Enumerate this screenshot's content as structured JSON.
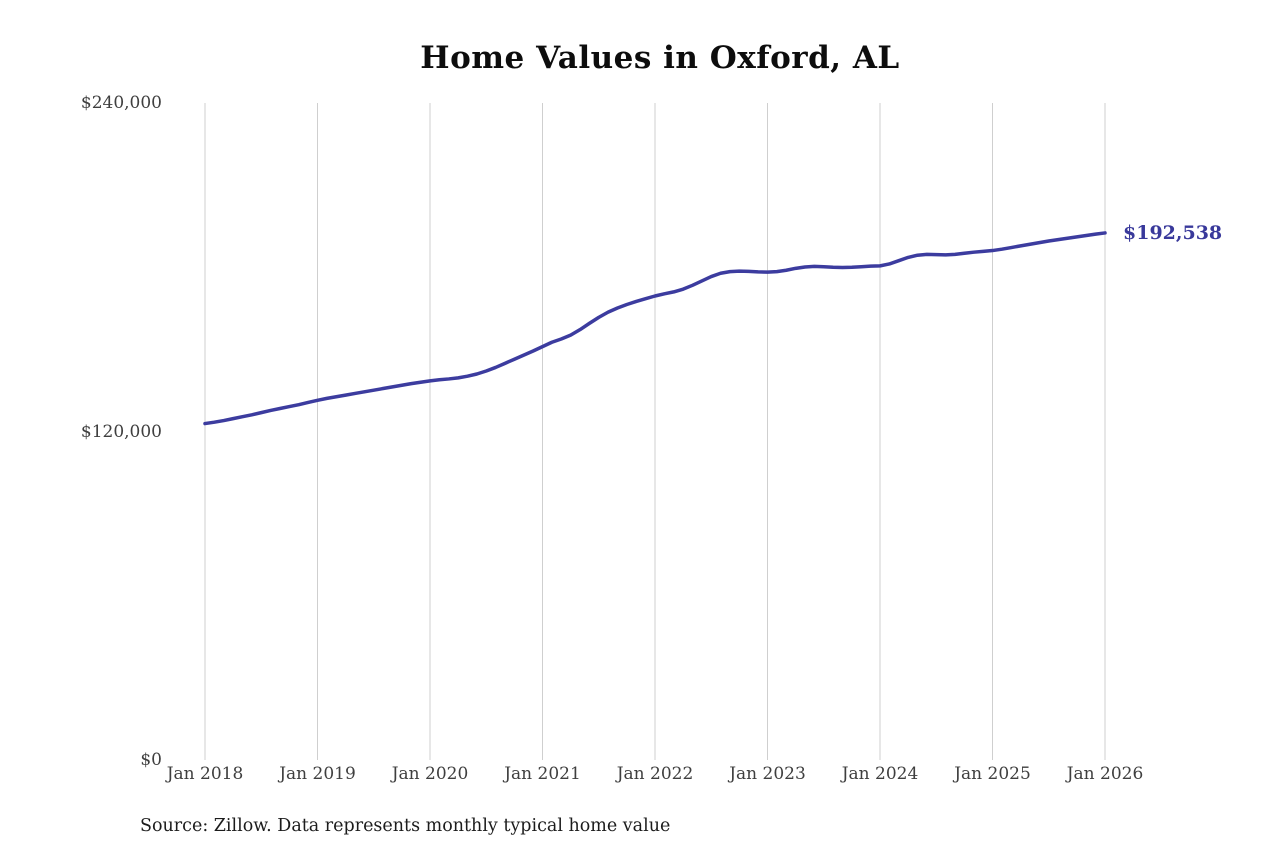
{
  "chart_data": {
    "type": "line",
    "title": "Home Values in Oxford, AL",
    "source_note": "Source: Zillow. Data represents monthly typical home value",
    "end_label": "$192,538",
    "end_value": 192538,
    "x_unit": "month",
    "x_range": [
      "Jan 2018",
      "Jan 2026"
    ],
    "x_ticks": [
      "Jan 2018",
      "Jan 2019",
      "Jan 2020",
      "Jan 2021",
      "Jan 2022",
      "Jan 2023",
      "Jan 2024",
      "Jan 2025",
      "Jan 2026"
    ],
    "y_ticks": [
      {
        "label": "$240,000",
        "value": 240000
      },
      {
        "label": "$120,000",
        "value": 120000
      },
      {
        "label": "$0",
        "value": 0
      }
    ],
    "ylim": [
      0,
      240000
    ],
    "grid": "vertical-only",
    "legend": "none",
    "series": [
      {
        "name": "Monthly typical home value",
        "start": "Jan 2018",
        "values": [
          122900,
          123400,
          124000,
          124700,
          125400,
          126100,
          126900,
          127700,
          128400,
          129100,
          129800,
          130600,
          131400,
          132100,
          132700,
          133300,
          133900,
          134500,
          135100,
          135700,
          136300,
          136900,
          137500,
          138000,
          138500,
          138900,
          139200,
          139600,
          140200,
          141000,
          142100,
          143400,
          144900,
          146400,
          147900,
          149400,
          151000,
          152600,
          153800,
          155200,
          157200,
          159500,
          161700,
          163600,
          165100,
          166400,
          167500,
          168500,
          169500,
          170300,
          171000,
          172000,
          173400,
          175000,
          176600,
          177800,
          178400,
          178600,
          178500,
          178300,
          178200,
          178400,
          178900,
          179600,
          180100,
          180300,
          180200,
          180000,
          179900,
          180000,
          180200,
          180400,
          180500,
          181200,
          182400,
          183600,
          184400,
          184700,
          184600,
          184500,
          184700,
          185100,
          185500,
          185800,
          186100,
          186600,
          187200,
          187800,
          188400,
          189000,
          189600,
          190100,
          190600,
          191100,
          191600,
          192100,
          192538
        ]
      }
    ],
    "colors": {
      "line": "#3c3c9f",
      "grid": "#cfcfcf",
      "title": "#0d0d0d",
      "tick_label": "#3f3f3f",
      "end_label": "#39399b"
    }
  }
}
